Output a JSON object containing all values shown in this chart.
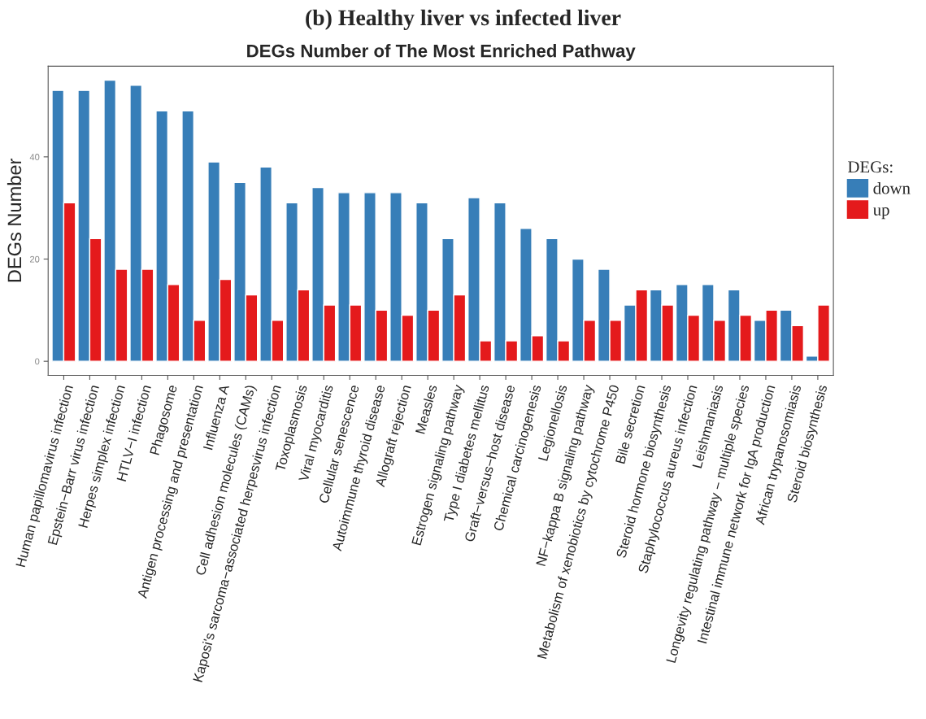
{
  "chart_data": {
    "type": "bar",
    "title": "(b) Healthy liver vs infected liver",
    "subtitle": "DEGs Number of The Most Enriched Pathway",
    "ylabel": "DEGs Number",
    "legend_title": "DEGs:",
    "legend": "right",
    "categories": [
      "Human papillomavirus infection",
      "Epstein−Barr virus infection",
      "Herpes simplex infection",
      "HTLV−I infection",
      "Phagosome",
      "Antigen processing and presentation",
      "Influenza A",
      "Cell adhesion molecules (CAMs)",
      "Kaposi's sarcoma−associated herpesvirus infection",
      "Toxoplasmosis",
      "Viral myocarditis",
      "Cellular senescence",
      "Autoimmune thyroid disease",
      "Allograft rejection",
      "Measles",
      "Estrogen signaling pathway",
      "Type I diabetes mellitus",
      "Graft−versus−host disease",
      "Chemical carcinogenesis",
      "Legionellosis",
      "NF−kappa B signaling pathway",
      "Metabolism of xenobiotics by cytochrome P450",
      "Bile secretion",
      "Steroid hormone biosynthesis",
      "Staphylococcus aureus infection",
      "Leishmaniasis",
      "Longevity regulating pathway − multiple species",
      "Intestinal immune network for IgA production",
      "African trypanosomiasis",
      "Steroid biosynthesis"
    ],
    "series": [
      {
        "name": "down",
        "color": "#377eb8",
        "values": [
          53,
          53,
          55,
          54,
          49,
          49,
          39,
          35,
          38,
          31,
          34,
          33,
          33,
          33,
          31,
          24,
          32,
          31,
          26,
          24,
          20,
          18,
          11,
          14,
          15,
          15,
          14,
          8,
          10,
          1
        ]
      },
      {
        "name": "up",
        "color": "#e41a1c",
        "values": [
          31,
          24,
          18,
          18,
          15,
          8,
          16,
          13,
          8,
          14,
          11,
          11,
          10,
          9,
          10,
          13,
          4,
          4,
          5,
          4,
          8,
          8,
          14,
          11,
          9,
          8,
          9,
          10,
          7,
          11
        ]
      }
    ],
    "ylim": [
      -2.75,
      57.75
    ],
    "yticks": [
      0,
      20,
      40
    ],
    "grid": false
  }
}
